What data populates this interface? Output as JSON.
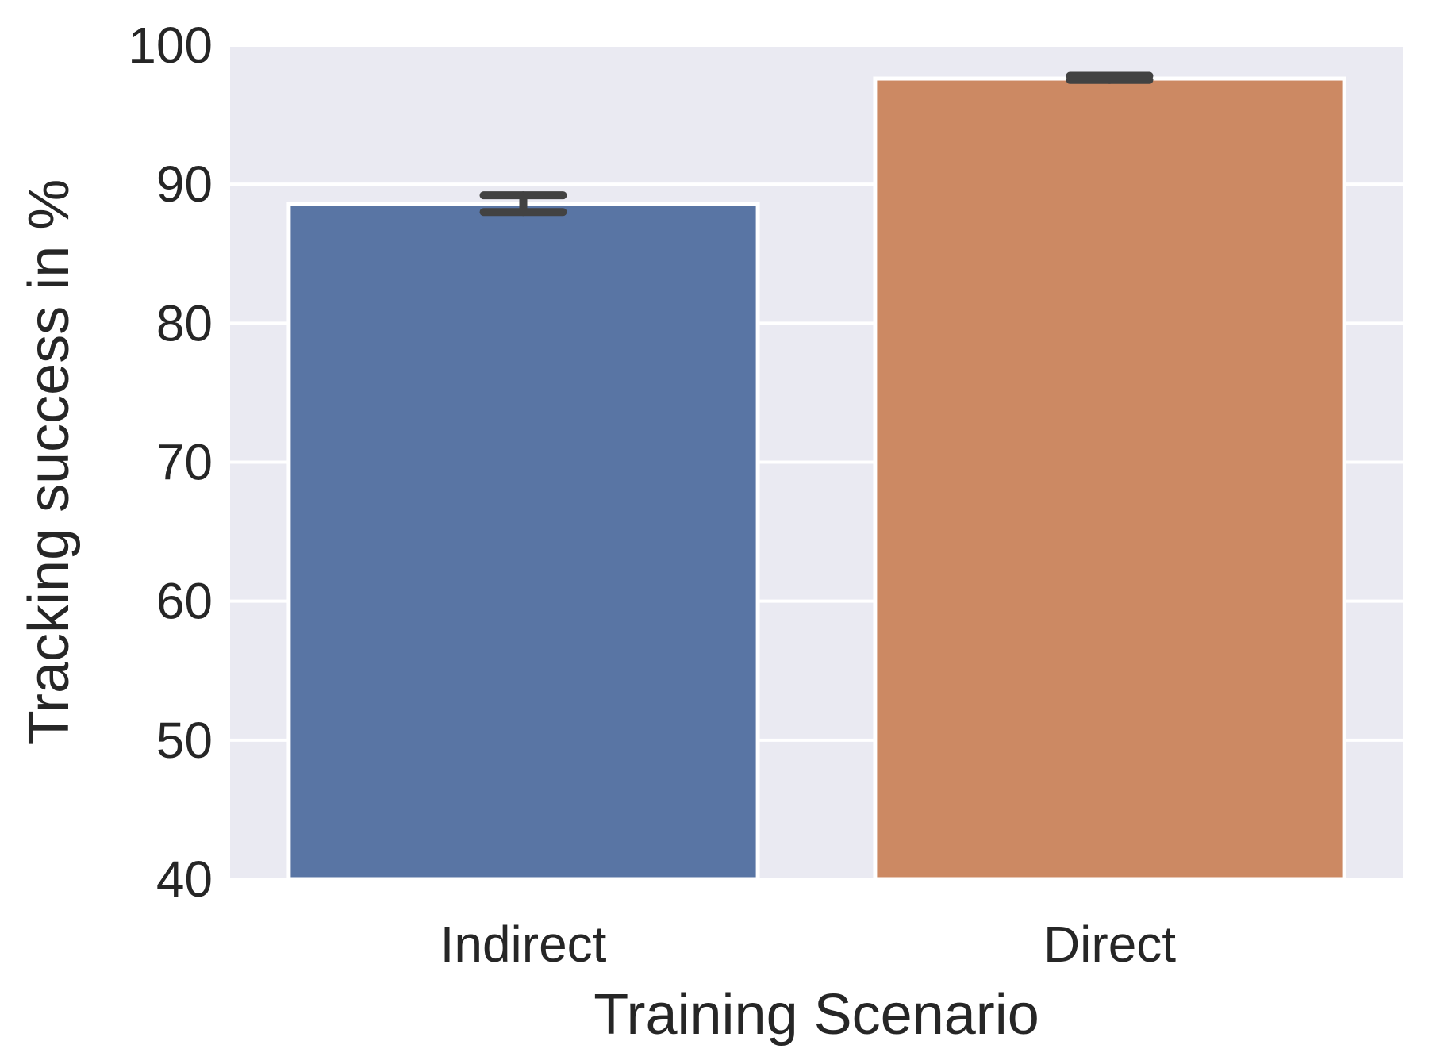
{
  "chart_data": {
    "type": "bar",
    "xlabel": "Training Scenario",
    "ylabel": "Tracking success in %",
    "categories": [
      "Indirect",
      "Direct"
    ],
    "values": [
      88.6,
      97.6
    ],
    "error_low": [
      88.0,
      97.5
    ],
    "error_high": [
      89.2,
      97.8
    ],
    "ylim": [
      40,
      100
    ],
    "yticks": [
      {
        "value": 40,
        "label": "40"
      },
      {
        "value": 50,
        "label": "50"
      },
      {
        "value": 60,
        "label": "60"
      },
      {
        "value": 70,
        "label": "70"
      },
      {
        "value": 80,
        "label": "80"
      },
      {
        "value": 90,
        "label": "90"
      },
      {
        "value": 100,
        "label": "100"
      }
    ],
    "grid": true,
    "colors": {
      "background": "#EAEAF2",
      "grid": "#FFFFFF",
      "bars": [
        "#5975A4",
        "#CC8963"
      ],
      "errorbar": "#424242",
      "text": "#262626"
    }
  }
}
